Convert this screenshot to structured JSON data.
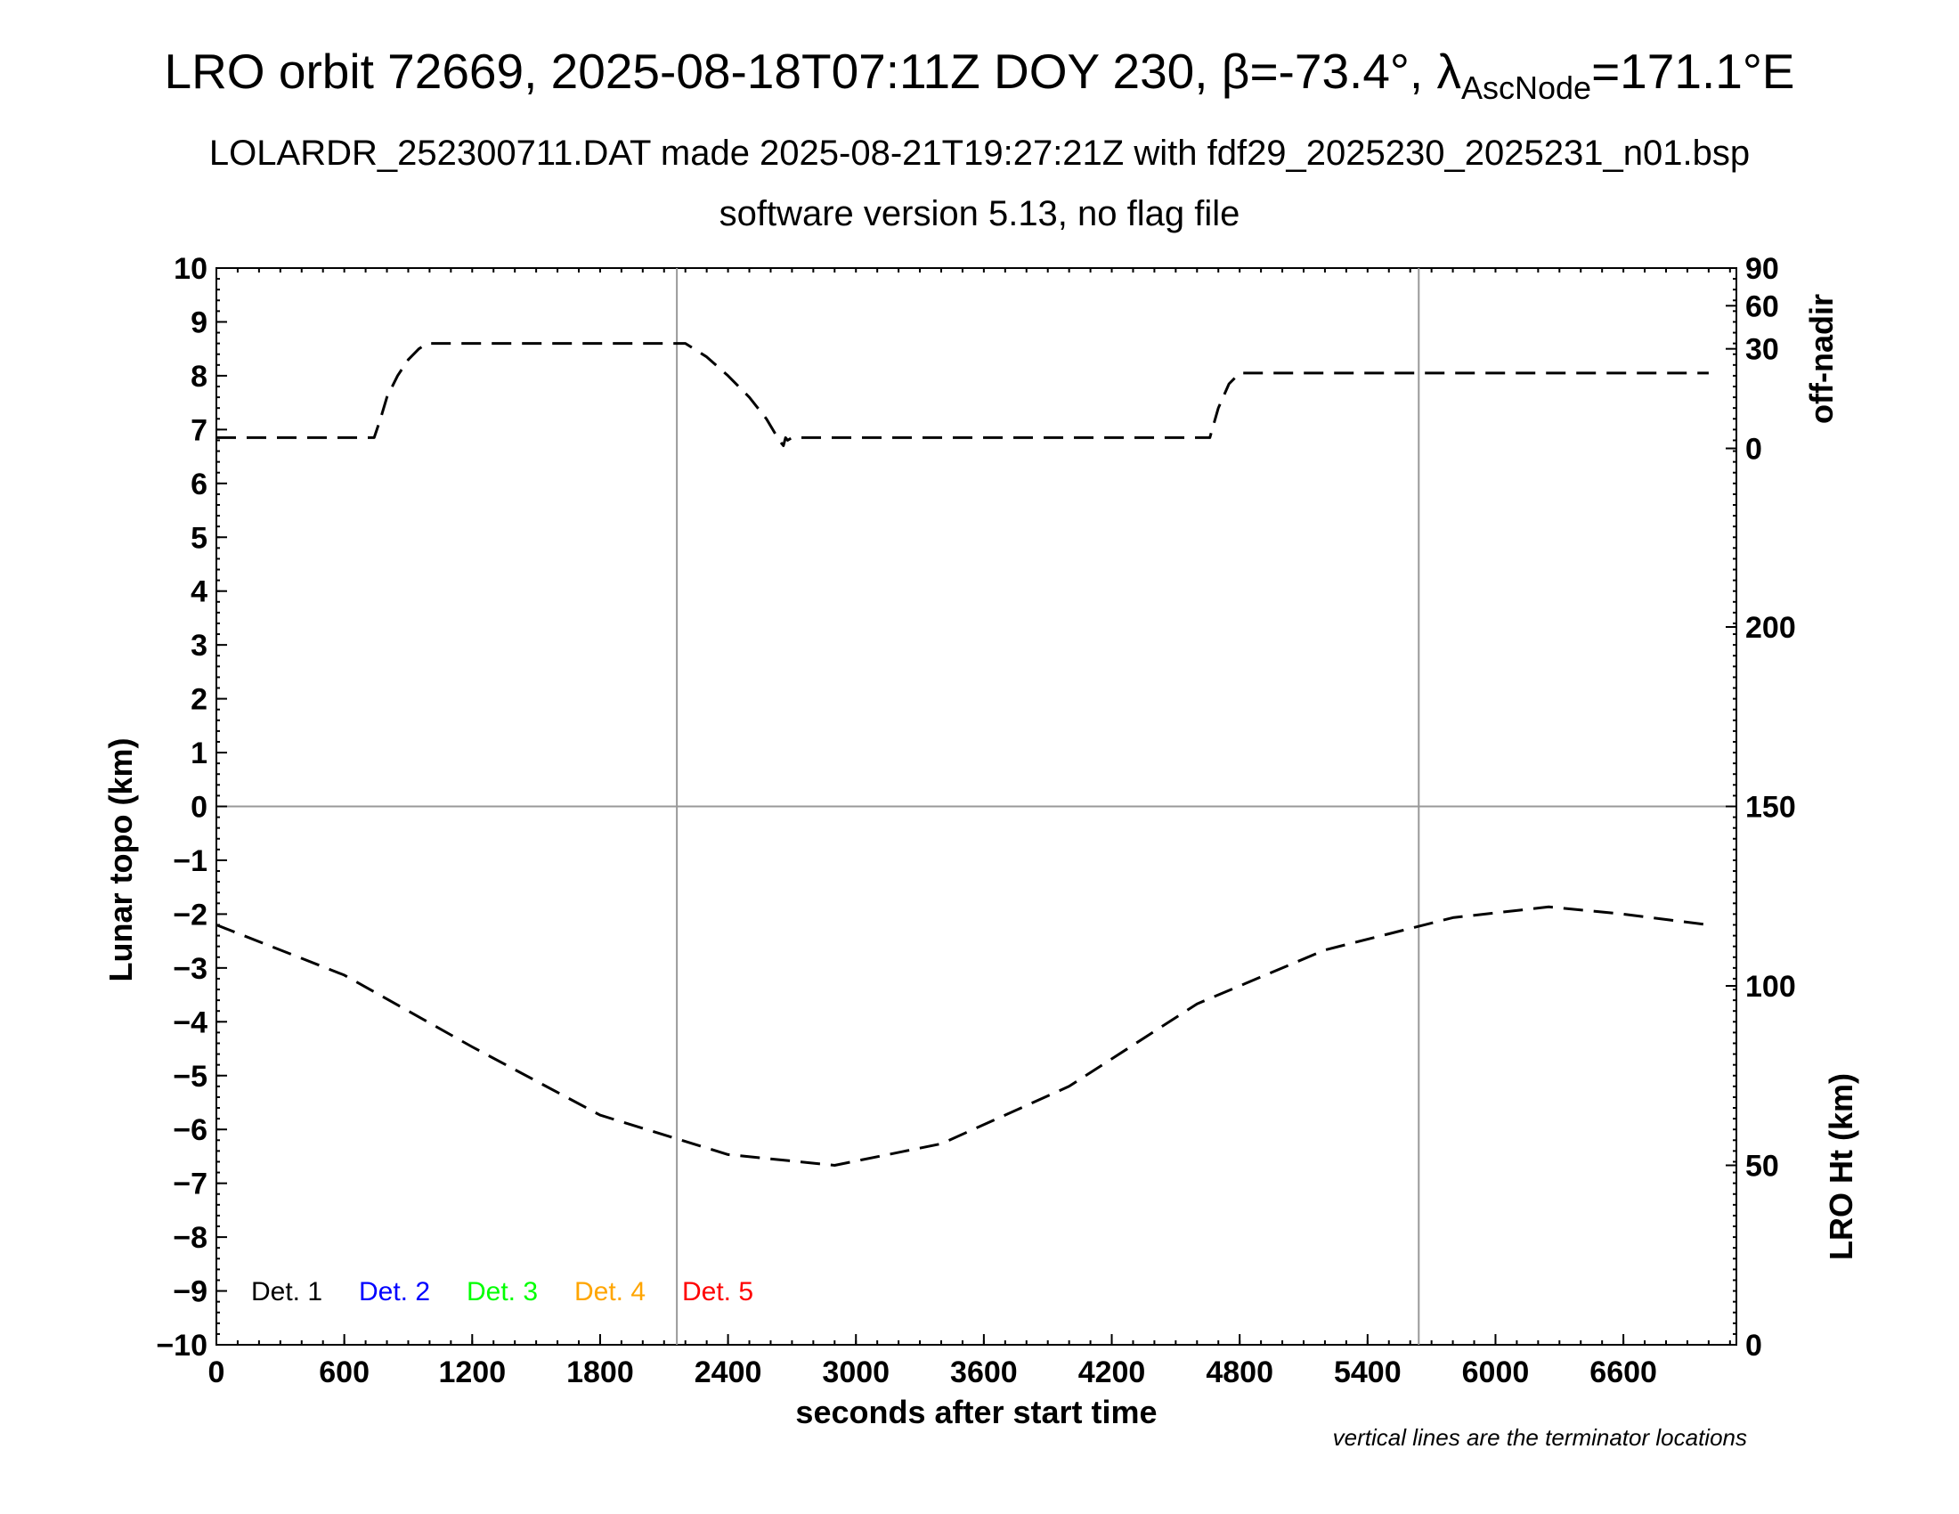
{
  "header": {
    "title_prefix": "LRO orbit 72669, 2025-08-18T07:11Z DOY 230, β=-73.4°, λ",
    "title_sub": "AscNode",
    "title_suffix": "=171.1°E",
    "subtitle1": "LOLARDR_252300711.DAT made 2025-08-21T19:27:21Z with fdf29_2025230_2025231_n01.bsp",
    "subtitle2": "software version 5.13, no flag file"
  },
  "footnote": "vertical lines are the terminator locations",
  "chart_data": {
    "type": "line",
    "xlabel": "seconds after start time",
    "ylabel": "Lunar topo (km)",
    "xlim": [
      0,
      7130
    ],
    "ylim": [
      -10,
      10
    ],
    "x_ticks": [
      0,
      600,
      1200,
      1800,
      2400,
      3000,
      3600,
      4200,
      4800,
      5400,
      6000,
      6600
    ],
    "y_ticks": [
      -10,
      -9,
      -8,
      -7,
      -6,
      -5,
      -4,
      -3,
      -2,
      -1,
      0,
      1,
      2,
      3,
      4,
      5,
      6,
      7,
      8,
      9,
      10
    ],
    "y_tick_labels": [
      "−10",
      "−9",
      "−8",
      "−7",
      "−6",
      "−5",
      "−4",
      "−3",
      "−2",
      "−1",
      "0",
      "1",
      "2",
      "3",
      "4",
      "5",
      "6",
      "7",
      "8",
      "9",
      "10"
    ],
    "right_axis_top": {
      "label": "off-nadir",
      "ticks": [
        {
          "label": "90",
          "y_position_km": 10
        },
        {
          "label": "60",
          "y_position_km": 9.3
        },
        {
          "label": "30",
          "y_position_km": 8.5
        },
        {
          "label": "0",
          "y_position_km": 6.65
        }
      ]
    },
    "right_axis_bottom": {
      "label": "LRO Ht (km)",
      "ticks": [
        0,
        50,
        100,
        150,
        200
      ],
      "range": [
        0,
        300
      ]
    },
    "terminator_lines_x": [
      2160,
      5640
    ],
    "zero_line_y": 0,
    "series": [
      {
        "axis": "off-nadir",
        "color": "#000000",
        "x": [
          0,
          740,
          770,
          800,
          850,
          900,
          950,
          990,
          2200,
          2300,
          2400,
          2500,
          2580,
          2640,
          2660,
          2670,
          2680,
          2700,
          4660,
          4700,
          4750,
          4800,
          7000
        ],
        "y_km": [
          6.85,
          6.85,
          7.2,
          7.6,
          8.0,
          8.3,
          8.5,
          8.6,
          8.6,
          8.35,
          8.0,
          7.6,
          7.2,
          6.8,
          6.7,
          6.85,
          6.8,
          6.85,
          6.85,
          7.4,
          7.85,
          8.05,
          8.05
        ]
      },
      {
        "axis": "LRO Ht (km)",
        "color": "#000000",
        "x": [
          0,
          600,
          1200,
          1800,
          2400,
          2900,
          3400,
          4000,
          4600,
          5200,
          5800,
          6250,
          6600,
          7000
        ],
        "y": [
          117,
          103,
          83,
          64,
          53,
          50,
          56,
          72,
          95,
          110,
          119,
          122,
          120,
          117
        ]
      }
    ],
    "legend": [
      {
        "label": "Det. 1",
        "color": "#000000"
      },
      {
        "label": "Det. 2",
        "color": "#0000ff"
      },
      {
        "label": "Det. 3",
        "color": "#00ff00"
      },
      {
        "label": "Det. 4",
        "color": "#ffa500"
      },
      {
        "label": "Det. 5",
        "color": "#ff0000"
      }
    ]
  }
}
